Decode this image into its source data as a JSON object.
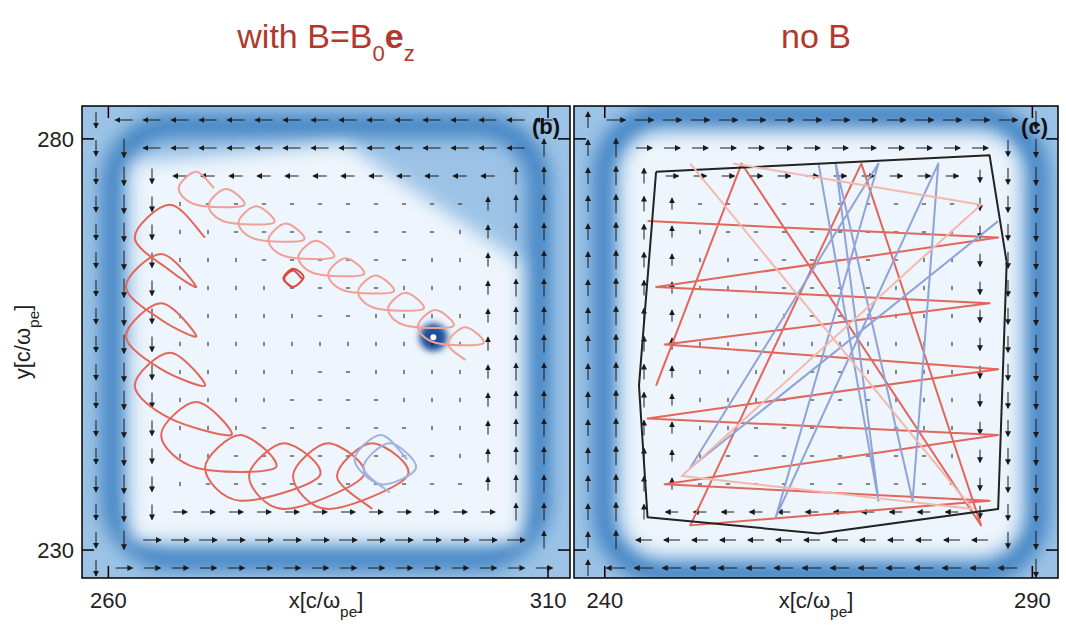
{
  "chart_data": [
    {
      "type": "line",
      "title": "with B=B0ez",
      "panel_label": "(b)",
      "x_label": "x[c/ωpe]",
      "y_label": "y[c/ωpe]",
      "xlim": [
        257,
        312.5
      ],
      "ylim": [
        226.6,
        284
      ],
      "xticks": [
        260,
        310
      ],
      "yticks": [
        230,
        280
      ],
      "tick_labels": true,
      "grid": false,
      "line_style": "smooth",
      "series": [
        {
          "color": "#f0a096",
          "x": [
            272,
            270,
            268,
            270,
            275.4,
            273.4,
            271.4,
            273.4,
            278.8,
            276.8,
            274.8,
            276.8,
            282.2,
            280.2,
            278.2,
            280.2,
            285.6,
            283.6,
            281.6,
            283.6,
            289,
            287,
            285,
            287,
            292.4,
            290.4,
            288.4,
            290.4,
            295.8,
            293.8,
            291.8,
            293.8,
            299.2,
            297.2,
            295.2,
            297.2,
            302.6,
            300.6,
            298.6,
            300.6
          ],
          "values": [
            274,
            276,
            274,
            272,
            271.9,
            273.9,
            271.9,
            269.9,
            269.8,
            271.8,
            269.8,
            267.8,
            267.7,
            269.7,
            267.7,
            265.7,
            265.6,
            267.6,
            265.6,
            263.6,
            263.5,
            265.5,
            263.5,
            261.5,
            261.4,
            263.4,
            261.4,
            259.4,
            259.3,
            261.3,
            259.3,
            257.3,
            257.2,
            259.2,
            257.2,
            255.2,
            255.1,
            257.1,
            255.1,
            253.1
          ]
        },
        {
          "color": "#e2665c",
          "x": [
            271,
            267,
            263,
            267,
            270,
            266,
            262,
            266,
            270,
            266,
            262,
            266,
            271,
            267,
            263,
            267,
            274,
            270,
            266,
            270,
            279,
            275,
            271,
            275,
            284,
            280,
            276,
            280,
            289,
            285,
            281,
            285,
            294,
            290,
            286,
            290
          ],
          "values": [
            268,
            272,
            268,
            264,
            262,
            266,
            262,
            258,
            256,
            260,
            256,
            252,
            250,
            254,
            250,
            246,
            244,
            248,
            244,
            240,
            240,
            244,
            240,
            236,
            239,
            243,
            239,
            235,
            239,
            243,
            239,
            235,
            239,
            243,
            239,
            235
          ]
        },
        {
          "color": "#9fb3de",
          "x": [
            294,
            291,
            288,
            291,
            295,
            292,
            289,
            292
          ],
          "values": [
            241,
            244,
            241,
            238,
            240,
            243,
            240,
            237
          ]
        },
        {
          "color": "#d9473e",
          "x": [
            282,
            281,
            280,
            281,
            282.2,
            281,
            279.9,
            281
          ],
          "values": [
            263,
            264,
            263,
            262,
            263.2,
            264.2,
            263,
            261.9
          ]
        }
      ]
    },
    {
      "type": "line",
      "title": "no B",
      "panel_label": "(c)",
      "x_label": "x[c/ωpe]",
      "xlim": [
        236.4,
        293
      ],
      "ylim": [
        226.6,
        284
      ],
      "xticks": [
        240,
        290
      ],
      "yticks": [
        230,
        280
      ],
      "tick_labels": "x",
      "grid": false,
      "line_style": "solid",
      "series": [
        {
          "color": "#e2665c",
          "x": [
            245,
            286,
            246,
            285,
            247,
            286,
            245,
            286,
            247,
            285,
            250,
            270,
            284,
            256,
            246
          ],
          "values": [
            270,
            268,
            262,
            260,
            255,
            252,
            246,
            244,
            238,
            236,
            233,
            277,
            233,
            277,
            250
          ]
        },
        {
          "color": "#8fa3d8",
          "x": [
            265,
            272,
            267,
            276,
            279,
            260,
            272,
            250,
            286
          ],
          "values": [
            277,
            236,
            277,
            236,
            277,
            234,
            277,
            240,
            270
          ]
        },
        {
          "color": "#222222",
          "x": [
            246,
            285,
            287,
            286,
            265,
            245,
            244,
            246
          ],
          "values": [
            276,
            278,
            265,
            235,
            232,
            234,
            250,
            276
          ]
        },
        {
          "color": "#f3b8ae",
          "x": [
            250,
            283,
            249,
            284,
            255
          ],
          "values": [
            277,
            235,
            239,
            272,
            277
          ]
        }
      ]
    }
  ]
}
